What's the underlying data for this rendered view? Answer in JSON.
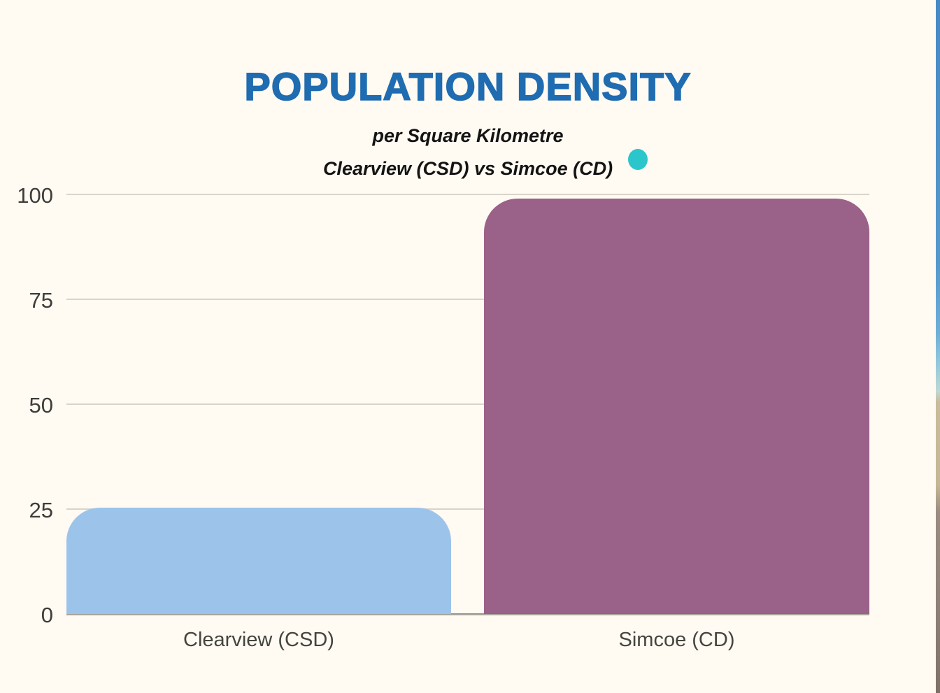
{
  "page": {
    "background": "#FFFAF2"
  },
  "header": {
    "title": "POPULATION DENSITY",
    "title_color": "#1F6CB1",
    "subtitle_line1": "per Square Kilometre",
    "subtitle_line2": "Clearview (CSD) vs Simcoe (CD)",
    "accent_dot_color": "#2BC6CB"
  },
  "chart_data": {
    "type": "bar",
    "title": "POPULATION DENSITY",
    "subtitle": [
      "per Square Kilometre",
      "Clearview (CSD) vs Simcoe (CD)"
    ],
    "categories": [
      "Clearview (CSD)",
      "Simcoe (CD)"
    ],
    "values": [
      25.3,
      99
    ],
    "bar_colors": [
      "#9CC3EA",
      "#9A6189"
    ],
    "ylim": [
      0,
      100
    ],
    "yticks": [
      0,
      25,
      50,
      75,
      100
    ],
    "grid": true,
    "legend": false,
    "xlabel": "",
    "ylabel": ""
  },
  "decor": {
    "right_edge_strip_colors": [
      "#4789C3",
      "#8FC6DE",
      "#C8BC9B",
      "#8D8076"
    ],
    "bottom_edge_strip_colors": [
      "#57554E",
      "#A99E86",
      "#23262A",
      "#B0A58C",
      "#1A1D21"
    ]
  }
}
